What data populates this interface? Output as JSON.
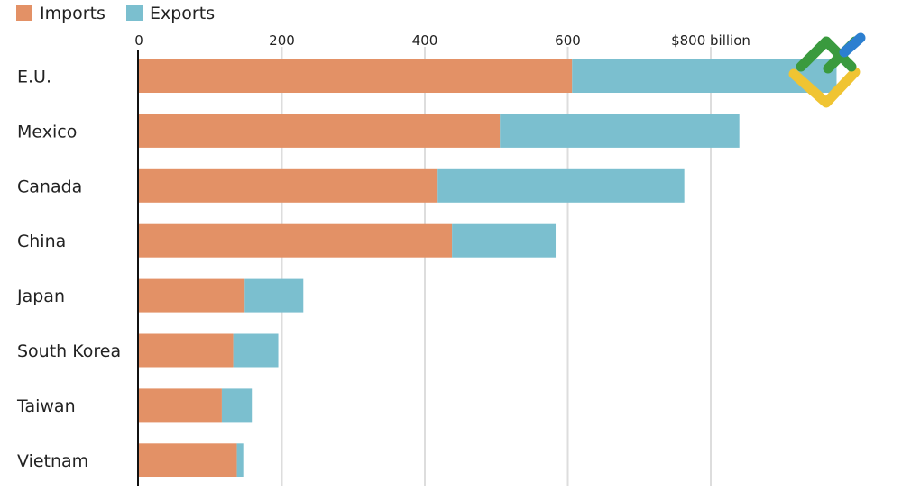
{
  "chart_data": {
    "type": "bar",
    "orientation": "horizontal",
    "stacked": true,
    "title": "",
    "xlabel": "",
    "ylabel": "",
    "unit_suffix": " billion",
    "xlim": [
      0,
      1000
    ],
    "x_ticks": [
      0,
      200,
      400,
      600,
      800
    ],
    "x_tick_labels": [
      "0",
      "200",
      "400",
      "600",
      "$800 billion"
    ],
    "grid": true,
    "legend": {
      "position": "top-left"
    },
    "categories": [
      "E.U.",
      "Mexico",
      "Canada",
      "China",
      "Japan",
      "South Korea",
      "Taiwan",
      "Vietnam"
    ],
    "series": [
      {
        "name": "Imports",
        "color": "#e39166",
        "values": [
          606,
          505,
          418,
          438,
          148,
          132,
          116,
          137
        ]
      },
      {
        "name": "Exports",
        "color": "#7bbfcf",
        "values": [
          370,
          335,
          345,
          145,
          82,
          63,
          42,
          9
        ]
      }
    ]
  },
  "logo": {
    "name": "corner logo",
    "colors": {
      "green": "#3a9a3e",
      "blue": "#2c7fd0",
      "yellow": "#f0c432"
    }
  }
}
